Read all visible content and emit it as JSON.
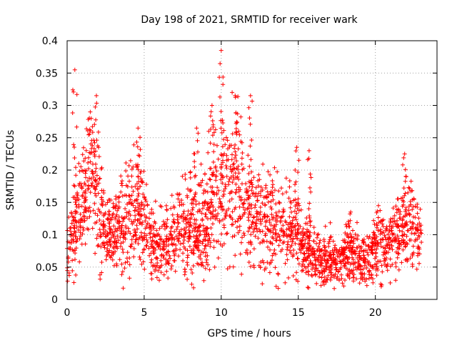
{
  "chart_data": {
    "type": "scatter",
    "title": "Day 198 of 2021, SRMTID for receiver wark",
    "xlabel": "GPS time / hours",
    "ylabel": "SRMTID / TECUs",
    "xlim": [
      0,
      24
    ],
    "ylim": [
      0,
      0.4
    ],
    "xticks": [
      0,
      5,
      10,
      15,
      20
    ],
    "yticks": [
      0,
      0.05,
      0.1,
      0.15,
      0.2,
      0.25,
      0.3,
      0.35,
      0.4
    ],
    "xtick_labels": [
      "0",
      "5",
      "10",
      "15",
      "20"
    ],
    "ytick_labels": [
      "0",
      "0.05",
      "0.1",
      "0.15",
      "0.2",
      "0.25",
      "0.3",
      "0.35",
      "0.4"
    ],
    "grid": true,
    "marker": "plus",
    "color": "#ff0000",
    "x_range_of_data": [
      0,
      23
    ],
    "series": [
      {
        "name": "SRMTID",
        "profile_hours": [
          0,
          0.5,
          1,
          1.5,
          2,
          2.5,
          3,
          3.5,
          4,
          4.5,
          5,
          5.5,
          6,
          6.5,
          7,
          7.5,
          8,
          8.5,
          9,
          9.5,
          10,
          10.5,
          11,
          11.5,
          12,
          12.5,
          13,
          13.5,
          14,
          14.5,
          15,
          15.5,
          16,
          16.5,
          17,
          17.5,
          18,
          18.5,
          19,
          19.5,
          20,
          20.5,
          21,
          21.5,
          22,
          22.5,
          23
        ],
        "profile_mean": [
          0.08,
          0.11,
          0.15,
          0.18,
          0.16,
          0.09,
          0.1,
          0.11,
          0.12,
          0.14,
          0.12,
          0.09,
          0.08,
          0.09,
          0.1,
          0.11,
          0.12,
          0.11,
          0.13,
          0.16,
          0.18,
          0.17,
          0.19,
          0.14,
          0.13,
          0.12,
          0.13,
          0.12,
          0.11,
          0.11,
          0.09,
          0.08,
          0.07,
          0.06,
          0.06,
          0.06,
          0.07,
          0.07,
          0.06,
          0.07,
          0.07,
          0.09,
          0.09,
          0.1,
          0.12,
          0.11,
          0.1
        ],
        "peaks": [
          {
            "x": 0.5,
            "y": 0.355
          },
          {
            "x": 1.5,
            "y": 0.29
          },
          {
            "x": 1.9,
            "y": 0.315
          },
          {
            "x": 4.6,
            "y": 0.265
          },
          {
            "x": 8.4,
            "y": 0.265
          },
          {
            "x": 9.4,
            "y": 0.3
          },
          {
            "x": 10.0,
            "y": 0.385
          },
          {
            "x": 10.9,
            "y": 0.315
          },
          {
            "x": 11.9,
            "y": 0.315
          },
          {
            "x": 14.9,
            "y": 0.235
          },
          {
            "x": 15.7,
            "y": 0.23
          },
          {
            "x": 18.4,
            "y": 0.135
          },
          {
            "x": 20.2,
            "y": 0.145
          },
          {
            "x": 21.9,
            "y": 0.225
          }
        ]
      }
    ]
  }
}
